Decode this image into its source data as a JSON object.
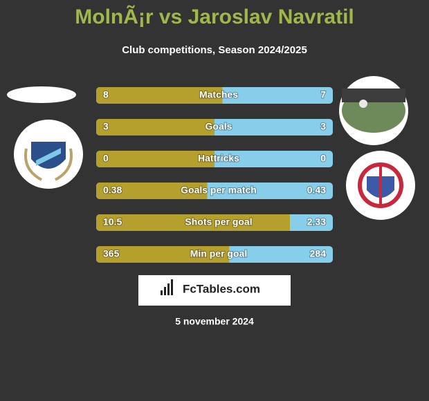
{
  "header": {
    "title": "MolnÃ¡r vs Jaroslav Navratil",
    "subtitle": "Club competitions, Season 2024/2025"
  },
  "rows": [
    {
      "label": "Matches",
      "left": 8,
      "right": 7
    },
    {
      "label": "Goals",
      "left": 3,
      "right": 3
    },
    {
      "label": "Hattricks",
      "left": 0,
      "right": 0
    },
    {
      "label": "Goals per match",
      "left": 0.38,
      "right": 0.43
    },
    {
      "label": "Shots per goal",
      "left": 10.5,
      "right": 2.33
    },
    {
      "label": "Min per goal",
      "left": 365,
      "right": 284
    }
  ],
  "brand": "FcTables.com",
  "date": "5 november 2024"
}
